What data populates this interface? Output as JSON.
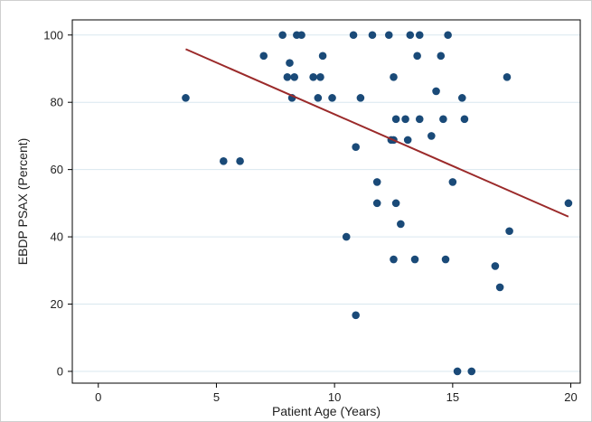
{
  "chart_data": {
    "type": "scatter",
    "title": "",
    "xlabel": "Patient Age (Years)",
    "ylabel": "EBDP PSAX (Percent)",
    "xlim": [
      0,
      20
    ],
    "ylim": [
      0,
      100
    ],
    "x_ticks": [
      "0",
      "5",
      "10",
      "15",
      "20"
    ],
    "y_ticks": [
      "0",
      "20",
      "40",
      "60",
      "80",
      "100"
    ],
    "grid": "horizontal",
    "colors": {
      "points": "#1a4a78",
      "fit_line": "#9b2a2a",
      "grid": "#d9e7ef",
      "background": "#ffffff"
    },
    "fit_line": {
      "x": [
        3.7,
        19.9
      ],
      "y": [
        95.8,
        46.0
      ]
    },
    "points": [
      {
        "x": 3.7,
        "y": 81.3
      },
      {
        "x": 5.3,
        "y": 62.5
      },
      {
        "x": 6.0,
        "y": 62.5
      },
      {
        "x": 7.0,
        "y": 93.8
      },
      {
        "x": 7.8,
        "y": 100
      },
      {
        "x": 8.0,
        "y": 87.5
      },
      {
        "x": 8.1,
        "y": 91.7
      },
      {
        "x": 8.2,
        "y": 81.3
      },
      {
        "x": 8.3,
        "y": 87.5
      },
      {
        "x": 8.4,
        "y": 100
      },
      {
        "x": 8.6,
        "y": 100
      },
      {
        "x": 9.1,
        "y": 87.5
      },
      {
        "x": 9.3,
        "y": 81.3
      },
      {
        "x": 9.4,
        "y": 87.5
      },
      {
        "x": 9.5,
        "y": 93.8
      },
      {
        "x": 9.9,
        "y": 81.3
      },
      {
        "x": 10.5,
        "y": 40.0
      },
      {
        "x": 10.8,
        "y": 100
      },
      {
        "x": 10.9,
        "y": 66.7
      },
      {
        "x": 10.9,
        "y": 16.7
      },
      {
        "x": 11.1,
        "y": 81.3
      },
      {
        "x": 11.6,
        "y": 100
      },
      {
        "x": 11.8,
        "y": 56.3
      },
      {
        "x": 11.8,
        "y": 50.0
      },
      {
        "x": 12.3,
        "y": 100
      },
      {
        "x": 12.4,
        "y": 68.8
      },
      {
        "x": 12.5,
        "y": 87.5
      },
      {
        "x": 12.5,
        "y": 68.8
      },
      {
        "x": 12.5,
        "y": 33.3
      },
      {
        "x": 12.6,
        "y": 75.0
      },
      {
        "x": 12.6,
        "y": 50.0
      },
      {
        "x": 12.8,
        "y": 43.8
      },
      {
        "x": 13.0,
        "y": 75.0
      },
      {
        "x": 13.1,
        "y": 68.8
      },
      {
        "x": 13.2,
        "y": 100
      },
      {
        "x": 13.4,
        "y": 33.3
      },
      {
        "x": 13.5,
        "y": 93.8
      },
      {
        "x": 13.6,
        "y": 100
      },
      {
        "x": 13.6,
        "y": 75.0
      },
      {
        "x": 14.1,
        "y": 70.0
      },
      {
        "x": 14.3,
        "y": 83.3
      },
      {
        "x": 14.5,
        "y": 93.8
      },
      {
        "x": 14.6,
        "y": 75.0
      },
      {
        "x": 14.7,
        "y": 33.3
      },
      {
        "x": 14.8,
        "y": 100
      },
      {
        "x": 15.0,
        "y": 56.3
      },
      {
        "x": 15.2,
        "y": 0
      },
      {
        "x": 15.4,
        "y": 81.3
      },
      {
        "x": 15.5,
        "y": 75.0
      },
      {
        "x": 15.8,
        "y": 0
      },
      {
        "x": 16.8,
        "y": 31.3
      },
      {
        "x": 17.0,
        "y": 25.0
      },
      {
        "x": 17.3,
        "y": 87.5
      },
      {
        "x": 17.4,
        "y": 41.7
      },
      {
        "x": 19.9,
        "y": 50.0
      }
    ]
  }
}
